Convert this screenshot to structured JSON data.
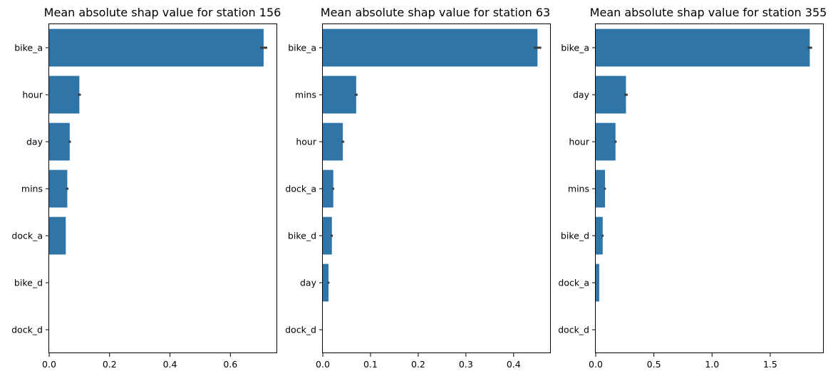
{
  "chart_data": [
    {
      "type": "bar",
      "orientation": "horizontal",
      "title": "Mean absolute shap value for station 156",
      "categories": [
        "bike_a",
        "hour",
        "day",
        "mins",
        "dock_a",
        "bike_d",
        "dock_d"
      ],
      "values": [
        0.71,
        0.1,
        0.068,
        0.06,
        0.055,
        0.0,
        0.0
      ],
      "errors": [
        0.012,
        0.005,
        0.004,
        0.004,
        0.0,
        0.0,
        0.0
      ],
      "xlim": [
        0,
        0.755
      ],
      "xticks": [
        0.0,
        0.2,
        0.4,
        0.6
      ],
      "xtick_labels": [
        "0.0",
        "0.2",
        "0.4",
        "0.6"
      ],
      "xlabel": "",
      "ylabel": "",
      "color": "#2f75a8",
      "error_color": "#3d3d3d",
      "grid": false
    },
    {
      "type": "bar",
      "orientation": "horizontal",
      "title": "Mean absolute shap value for station 63",
      "categories": [
        "bike_a",
        "mins",
        "hour",
        "dock_a",
        "bike_d",
        "day",
        "dock_d"
      ],
      "values": [
        0.45,
        0.07,
        0.042,
        0.022,
        0.019,
        0.012,
        0.0
      ],
      "errors": [
        0.008,
        0.003,
        0.003,
        0.002,
        0.002,
        0.002,
        0.0
      ],
      "xlim": [
        0,
        0.478
      ],
      "xticks": [
        0.0,
        0.1,
        0.2,
        0.3,
        0.4
      ],
      "xtick_labels": [
        "0.0",
        "0.1",
        "0.2",
        "0.3",
        "0.4"
      ],
      "xlabel": "",
      "ylabel": "",
      "color": "#2f75a8",
      "error_color": "#3d3d3d",
      "grid": false
    },
    {
      "type": "bar",
      "orientation": "horizontal",
      "title": "Mean absolute shap value for station 355",
      "categories": [
        "bike_a",
        "day",
        "hour",
        "mins",
        "bike_d",
        "dock_a",
        "dock_d"
      ],
      "values": [
        1.84,
        0.26,
        0.17,
        0.08,
        0.06,
        0.03,
        0.0
      ],
      "errors": [
        0.02,
        0.015,
        0.01,
        0.008,
        0.008,
        0.0,
        0.0
      ],
      "xlim": [
        0,
        1.96
      ],
      "xticks": [
        0.0,
        0.5,
        1.0,
        1.5
      ],
      "xtick_labels": [
        "0.0",
        "0.5",
        "1.0",
        "1.5"
      ],
      "xlabel": "",
      "ylabel": "",
      "color": "#2f75a8",
      "error_color": "#3d3d3d",
      "grid": false
    }
  ]
}
